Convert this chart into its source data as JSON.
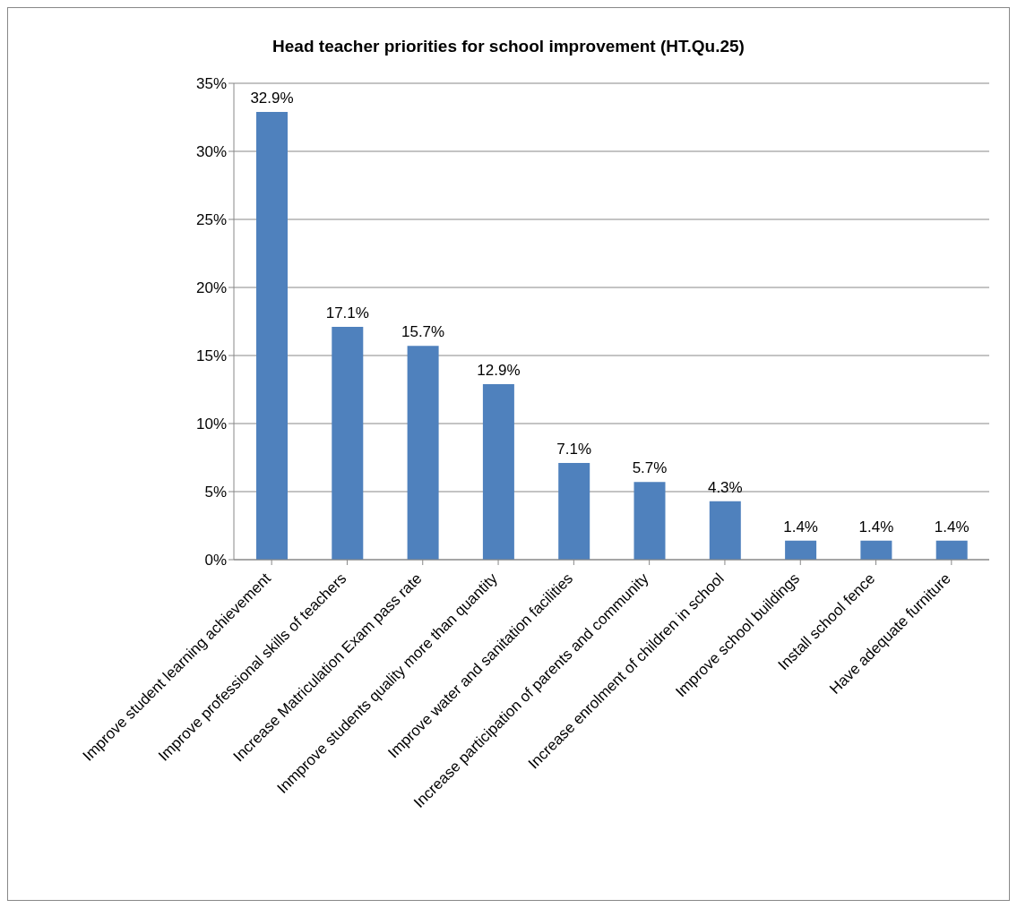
{
  "chart_data": {
    "type": "bar",
    "title": "Head teacher priorities for school improvement (HT.Qu.25)",
    "categories": [
      "Improve student learning achievement",
      "Improve professional skills of teachers",
      "Increase Matriculation Exam pass rate",
      "Inmprove students quality more than quantity",
      "Improve water and sanitation facilities",
      "Increase participation of parents and community",
      "Increase enrolment of children in school",
      "Improve school buildings",
      "Install school fence",
      "Have adequate furniture"
    ],
    "values": [
      32.9,
      17.1,
      15.7,
      12.9,
      7.1,
      5.7,
      4.3,
      1.4,
      1.4,
      1.4
    ],
    "value_labels": [
      "32.9%",
      "17.1%",
      "15.7%",
      "12.9%",
      "7.1%",
      "5.7%",
      "4.3%",
      "1.4%",
      "1.4%",
      "1.4%"
    ],
    "color": "#4f81bd",
    "ylim": [
      0,
      35
    ],
    "yticks": [
      {
        "value": 0,
        "label": "0%"
      },
      {
        "value": 5,
        "label": "5%"
      },
      {
        "value": 10,
        "label": "10%"
      },
      {
        "value": 15,
        "label": "15%"
      },
      {
        "value": 20,
        "label": "20%"
      },
      {
        "value": 25,
        "label": "25%"
      },
      {
        "value": 30,
        "label": "30%"
      },
      {
        "value": 35,
        "label": "35%"
      }
    ],
    "grid": "y"
  }
}
